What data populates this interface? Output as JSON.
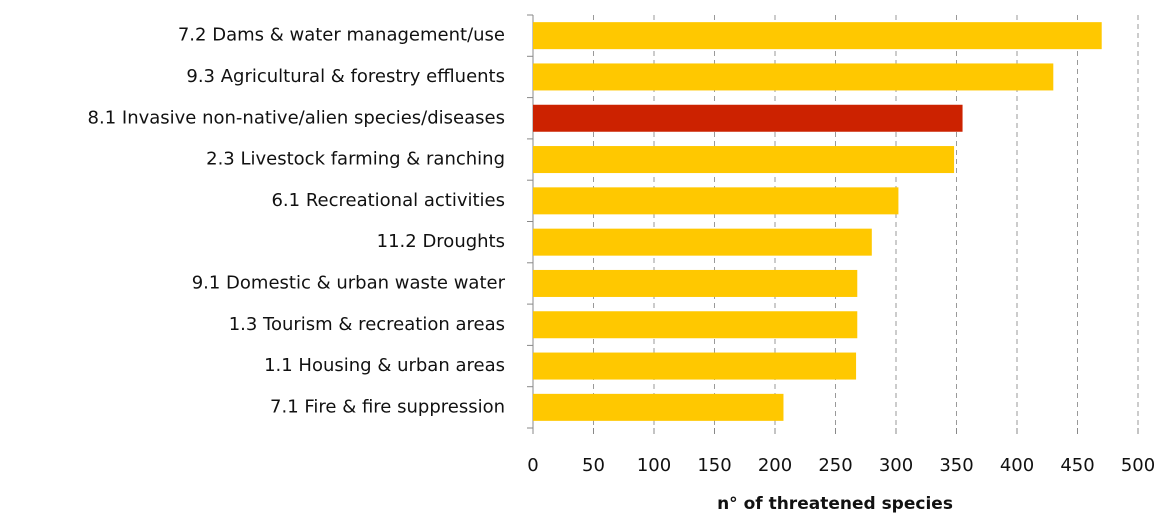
{
  "chart_data": {
    "type": "bar",
    "orientation": "horizontal",
    "categories": [
      "7.2 Dams & water management/use",
      "9.3 Agricultural & forestry effluents",
      "8.1 Invasive non-native/alien species/diseases",
      "2.3 Livestock farming & ranching",
      "6.1 Recreational activities",
      "11.2 Droughts",
      "9.1 Domestic & urban waste water",
      "1.3 Tourism & recreation areas",
      "1.1 Housing & urban areas",
      "7.1 Fire & fire suppression"
    ],
    "values": [
      470,
      430,
      355,
      348,
      302,
      280,
      268,
      268,
      267,
      207
    ],
    "colors": [
      "#ffc800",
      "#ffc800",
      "#cc2200",
      "#ffc800",
      "#ffc800",
      "#ffc800",
      "#ffc800",
      "#ffc800",
      "#ffc800",
      "#ffc800"
    ],
    "x_label": "n° of threatened species",
    "xlim": [
      0,
      500
    ],
    "xticks": [
      0,
      50,
      100,
      150,
      200,
      250,
      300,
      350,
      400,
      450,
      500
    ],
    "grid": true
  }
}
